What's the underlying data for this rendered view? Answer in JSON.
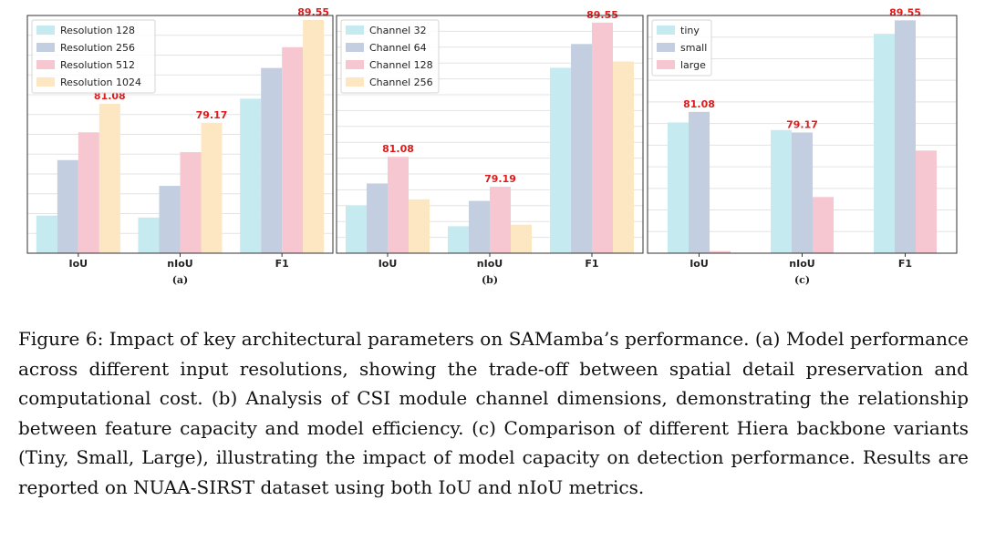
{
  "figure": {
    "caption": "Figure 6: Impact of key architectural parameters on SAMamba’s performance. (a) Model performance across different input resolutions, showing the trade-off between spatial detail preservation and computational cost. (b) Analysis of CSI module channel dimensions, demonstrating the relationship between feature capacity and model efficiency. (c) Comparison of different Hiera backbone variants (Tiny, Small, Large), illustrating the impact of model capacity on detection performance. Results are reported on NUAA-SIRST dataset using both IoU and nIoU metrics."
  },
  "colors": {
    "series": [
      "#c5eaf0",
      "#c3cfe0",
      "#f6c7d0",
      "#fde6c2"
    ],
    "highlight_label": "#dd1c1c",
    "axis": "#333333",
    "grid": "#e3e3e3"
  },
  "chart_data": [
    {
      "type": "bar",
      "panel_label": "(a)",
      "categories": [
        "IoU",
        "nIoU",
        "F1"
      ],
      "ylim": [
        66,
        90
      ],
      "grid": true,
      "legend_position": "top-left",
      "series": [
        {
          "name": "Resolution 128",
          "values": [
            69.8,
            69.6,
            81.6
          ]
        },
        {
          "name": "Resolution 256",
          "values": [
            75.4,
            72.8,
            84.7
          ]
        },
        {
          "name": "Resolution 512",
          "values": [
            78.2,
            76.2,
            86.8
          ]
        },
        {
          "name": "Resolution 1024",
          "values": [
            81.08,
            79.17,
            89.55
          ]
        }
      ],
      "annotations": [
        {
          "series": 3,
          "category": 0,
          "text": "81.08"
        },
        {
          "series": 3,
          "category": 1,
          "text": "79.17"
        },
        {
          "series": 3,
          "category": 2,
          "text": "89.55"
        }
      ]
    },
    {
      "type": "bar",
      "panel_label": "(b)",
      "categories": [
        "IoU",
        "nIoU",
        "F1"
      ],
      "ylim": [
        75,
        90
      ],
      "grid": true,
      "legend_position": "top-left",
      "series": [
        {
          "name": "Channel 32",
          "values": [
            78.0,
            76.7,
            86.7
          ]
        },
        {
          "name": "Channel 64",
          "values": [
            79.4,
            78.3,
            88.2
          ]
        },
        {
          "name": "Channel 128",
          "values": [
            81.08,
            79.19,
            89.55
          ]
        },
        {
          "name": "Channel 256",
          "values": [
            78.4,
            76.8,
            87.1
          ]
        }
      ],
      "annotations": [
        {
          "series": 2,
          "category": 0,
          "text": "81.08"
        },
        {
          "series": 2,
          "category": 1,
          "text": "79.19"
        },
        {
          "series": 2,
          "category": 2,
          "text": "89.55"
        }
      ]
    },
    {
      "type": "bar",
      "panel_label": "(c)",
      "categories": [
        "IoU",
        "nIoU",
        "F1"
      ],
      "ylim": [
        68,
        90
      ],
      "grid": true,
      "legend_position": "top-left",
      "series": [
        {
          "name": "tiny",
          "values": [
            80.1,
            79.4,
            88.3
          ]
        },
        {
          "name": "small",
          "values": [
            81.08,
            79.17,
            89.55
          ]
        },
        {
          "name": "large",
          "values": [
            68.2,
            73.2,
            77.5
          ]
        }
      ],
      "annotations": [
        {
          "series": 1,
          "category": 0,
          "text": "81.08"
        },
        {
          "series": 1,
          "category": 1,
          "text": "79.17"
        },
        {
          "series": 1,
          "category": 2,
          "text": "89.55"
        }
      ]
    }
  ]
}
